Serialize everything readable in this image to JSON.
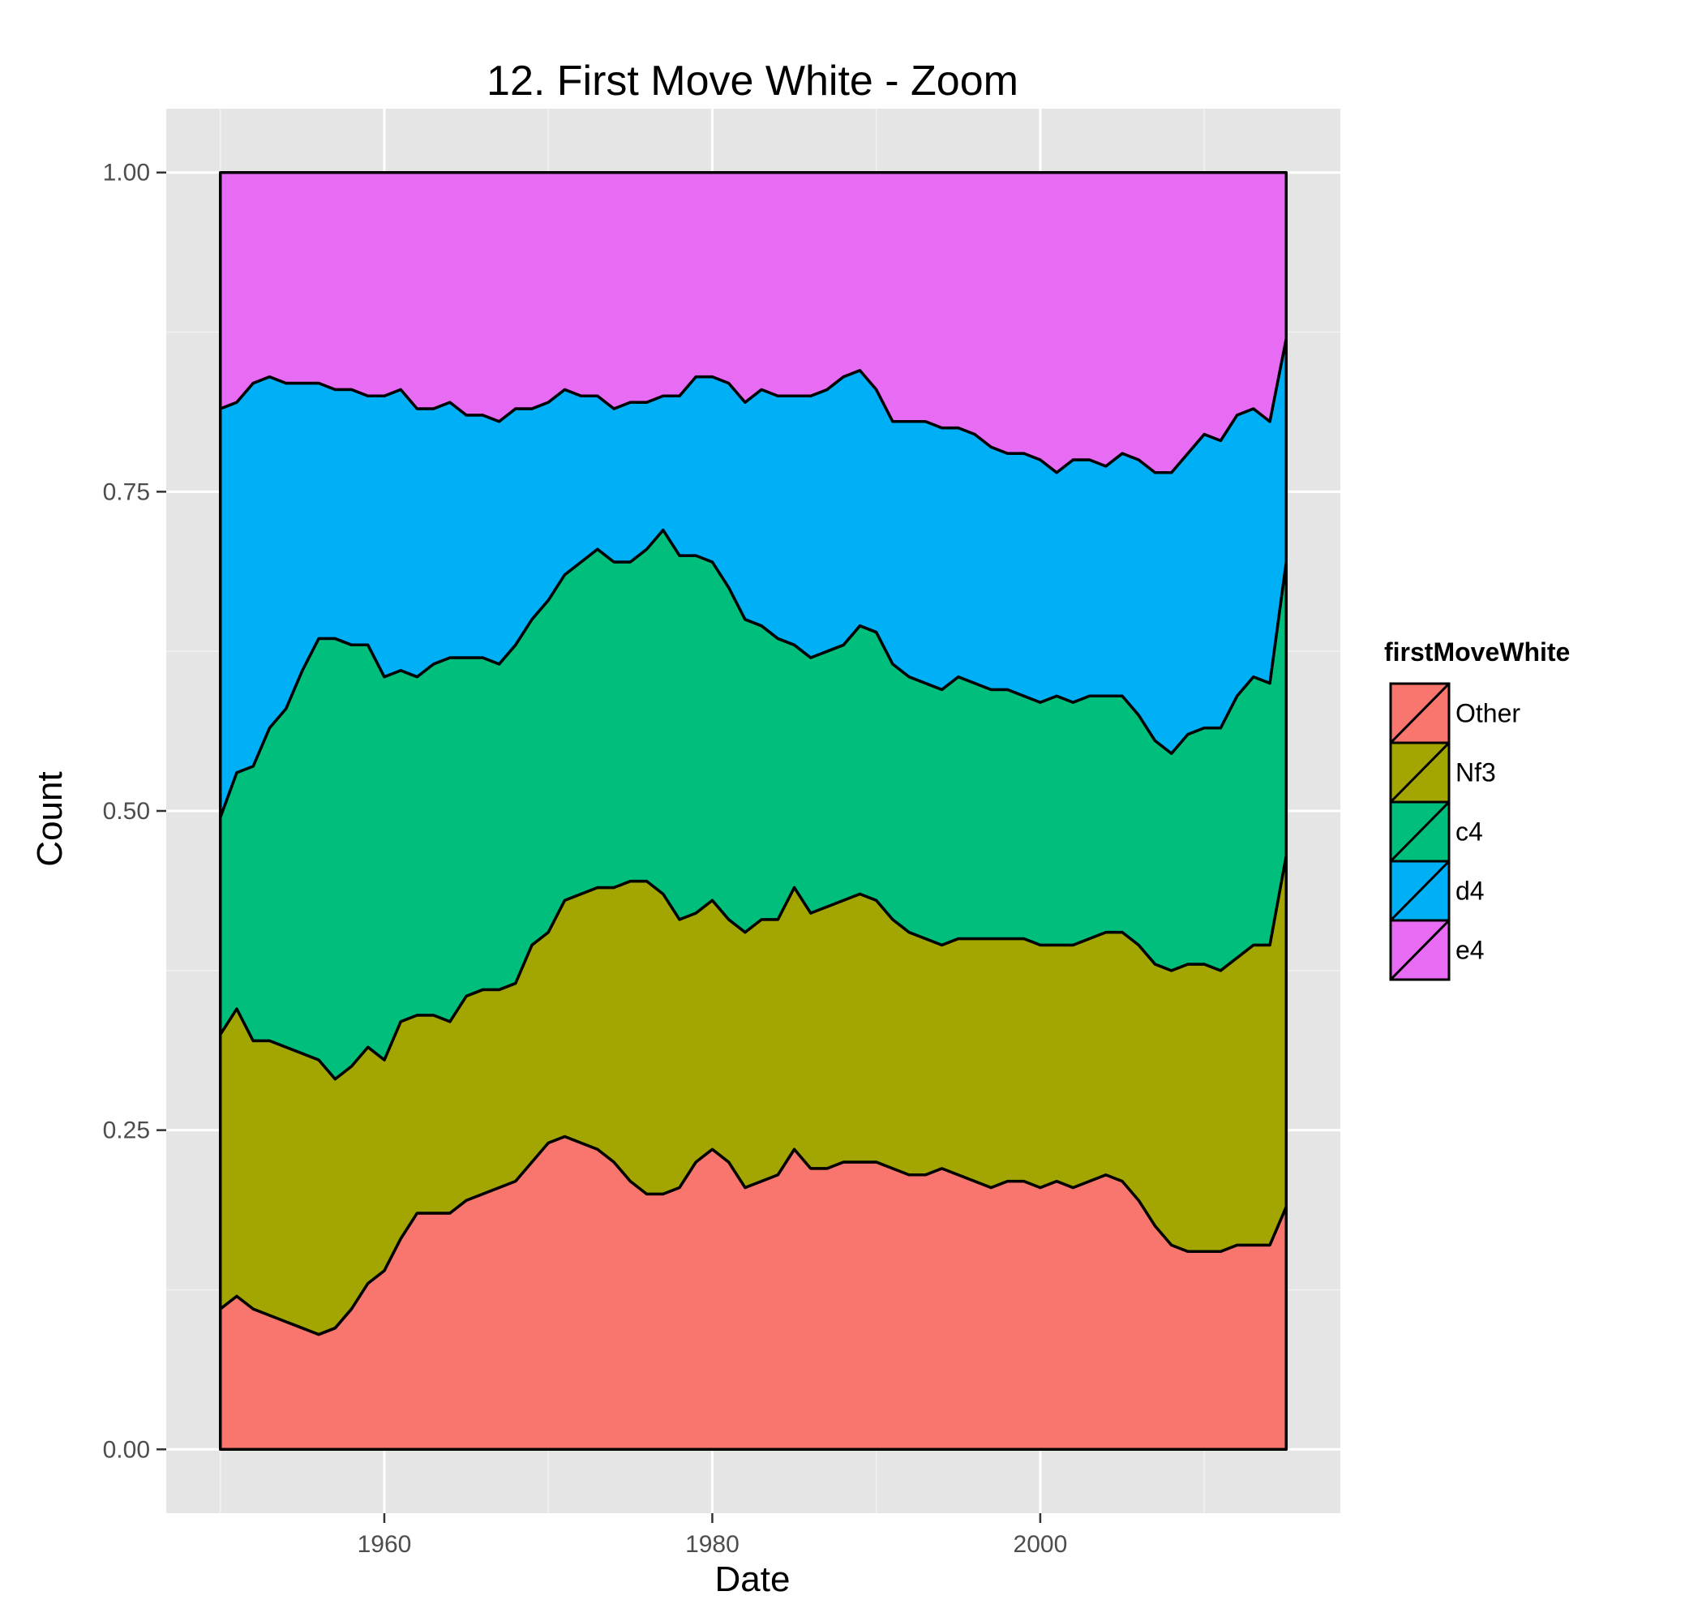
{
  "chart_data": {
    "type": "area",
    "stacked": true,
    "normalized": true,
    "title": "12. First Move White - Zoom",
    "xlabel": "Date",
    "ylabel": "Count",
    "xlim": [
      1946.7,
      2018.3
    ],
    "ylim": [
      -0.05,
      1.05
    ],
    "x_ticks": [
      1960,
      1980,
      2000
    ],
    "y_ticks": [
      0,
      0.25,
      0.5,
      0.75,
      1
    ],
    "y_tick_labels": [
      "0.00",
      "0.25",
      "0.50",
      "0.75",
      "1.00"
    ],
    "grid": true,
    "legend_position": "right",
    "legend_title": "firstMoveWhite",
    "x": [
      1950,
      1951,
      1952,
      1953,
      1954,
      1955,
      1956,
      1957,
      1958,
      1959,
      1960,
      1961,
      1962,
      1963,
      1964,
      1965,
      1966,
      1967,
      1968,
      1969,
      1970,
      1971,
      1972,
      1973,
      1974,
      1975,
      1976,
      1977,
      1978,
      1979,
      1980,
      1981,
      1982,
      1983,
      1984,
      1985,
      1986,
      1987,
      1988,
      1989,
      1990,
      1991,
      1992,
      1993,
      1994,
      1995,
      1996,
      1997,
      1998,
      1999,
      2000,
      2001,
      2002,
      2003,
      2004,
      2005,
      2006,
      2007,
      2008,
      2009,
      2010,
      2011,
      2012,
      2013,
      2014,
      2015
    ],
    "series": [
      {
        "name": "Other",
        "color": "#F8766D",
        "values": [
          0.11,
          0.12,
          0.11,
          0.105,
          0.1,
          0.095,
          0.09,
          0.095,
          0.11,
          0.13,
          0.14,
          0.165,
          0.185,
          0.185,
          0.185,
          0.195,
          0.2,
          0.205,
          0.21,
          0.225,
          0.24,
          0.245,
          0.24,
          0.235,
          0.225,
          0.21,
          0.2,
          0.2,
          0.205,
          0.225,
          0.235,
          0.225,
          0.205,
          0.21,
          0.215,
          0.235,
          0.22,
          0.22,
          0.225,
          0.225,
          0.225,
          0.22,
          0.215,
          0.215,
          0.22,
          0.215,
          0.21,
          0.205,
          0.21,
          0.21,
          0.205,
          0.21,
          0.205,
          0.21,
          0.215,
          0.21,
          0.195,
          0.175,
          0.16,
          0.155,
          0.155,
          0.155,
          0.16,
          0.16,
          0.16,
          0.19
        ]
      },
      {
        "name": "Nf3",
        "color": "#A3A500",
        "values": [
          0.215,
          0.225,
          0.21,
          0.215,
          0.215,
          0.215,
          0.215,
          0.195,
          0.19,
          0.185,
          0.165,
          0.17,
          0.155,
          0.155,
          0.15,
          0.16,
          0.16,
          0.155,
          0.155,
          0.17,
          0.165,
          0.185,
          0.195,
          0.205,
          0.215,
          0.235,
          0.245,
          0.235,
          0.21,
          0.195,
          0.195,
          0.19,
          0.2,
          0.205,
          0.2,
          0.205,
          0.2,
          0.205,
          0.205,
          0.21,
          0.205,
          0.195,
          0.19,
          0.185,
          0.175,
          0.185,
          0.19,
          0.195,
          0.19,
          0.19,
          0.19,
          0.185,
          0.19,
          0.19,
          0.19,
          0.195,
          0.2,
          0.205,
          0.215,
          0.225,
          0.225,
          0.22,
          0.225,
          0.235,
          0.235,
          0.275
        ]
      },
      {
        "name": "c4",
        "color": "#00BF7D",
        "values": [
          0.17,
          0.185,
          0.215,
          0.245,
          0.265,
          0.3,
          0.33,
          0.345,
          0.33,
          0.315,
          0.3,
          0.275,
          0.265,
          0.275,
          0.285,
          0.265,
          0.26,
          0.255,
          0.265,
          0.255,
          0.26,
          0.255,
          0.26,
          0.265,
          0.255,
          0.25,
          0.26,
          0.285,
          0.285,
          0.28,
          0.265,
          0.26,
          0.245,
          0.23,
          0.22,
          0.19,
          0.2,
          0.2,
          0.2,
          0.21,
          0.21,
          0.2,
          0.2,
          0.2,
          0.2,
          0.205,
          0.2,
          0.195,
          0.195,
          0.19,
          0.19,
          0.195,
          0.19,
          0.19,
          0.185,
          0.185,
          0.18,
          0.175,
          0.17,
          0.18,
          0.185,
          0.19,
          0.205,
          0.21,
          0.205,
          0.23
        ]
      },
      {
        "name": "d4",
        "color": "#00B0F6",
        "values": [
          0.32,
          0.29,
          0.3,
          0.275,
          0.255,
          0.225,
          0.2,
          0.195,
          0.2,
          0.195,
          0.22,
          0.22,
          0.21,
          0.2,
          0.2,
          0.19,
          0.19,
          0.19,
          0.185,
          0.165,
          0.155,
          0.145,
          0.13,
          0.12,
          0.12,
          0.125,
          0.115,
          0.105,
          0.125,
          0.14,
          0.145,
          0.16,
          0.17,
          0.185,
          0.19,
          0.195,
          0.205,
          0.205,
          0.21,
          0.2,
          0.19,
          0.19,
          0.2,
          0.205,
          0.205,
          0.195,
          0.195,
          0.19,
          0.185,
          0.19,
          0.19,
          0.175,
          0.19,
          0.185,
          0.18,
          0.19,
          0.2,
          0.21,
          0.22,
          0.22,
          0.23,
          0.225,
          0.22,
          0.21,
          0.205,
          0.175
        ]
      },
      {
        "name": "e4",
        "color": "#E76BF3",
        "values": [
          0.185,
          0.18,
          0.165,
          0.16,
          0.165,
          0.165,
          0.165,
          0.17,
          0.17,
          0.175,
          0.175,
          0.17,
          0.185,
          0.185,
          0.18,
          0.19,
          0.19,
          0.195,
          0.185,
          0.185,
          0.18,
          0.17,
          0.175,
          0.175,
          0.185,
          0.18,
          0.18,
          0.175,
          0.175,
          0.16,
          0.16,
          0.165,
          0.18,
          0.17,
          0.175,
          0.175,
          0.175,
          0.17,
          0.16,
          0.155,
          0.17,
          0.195,
          0.195,
          0.195,
          0.2,
          0.2,
          0.205,
          0.215,
          0.22,
          0.22,
          0.225,
          0.235,
          0.225,
          0.225,
          0.23,
          0.22,
          0.225,
          0.235,
          0.235,
          0.22,
          0.205,
          0.21,
          0.19,
          0.185,
          0.195,
          0.13
        ]
      }
    ]
  }
}
